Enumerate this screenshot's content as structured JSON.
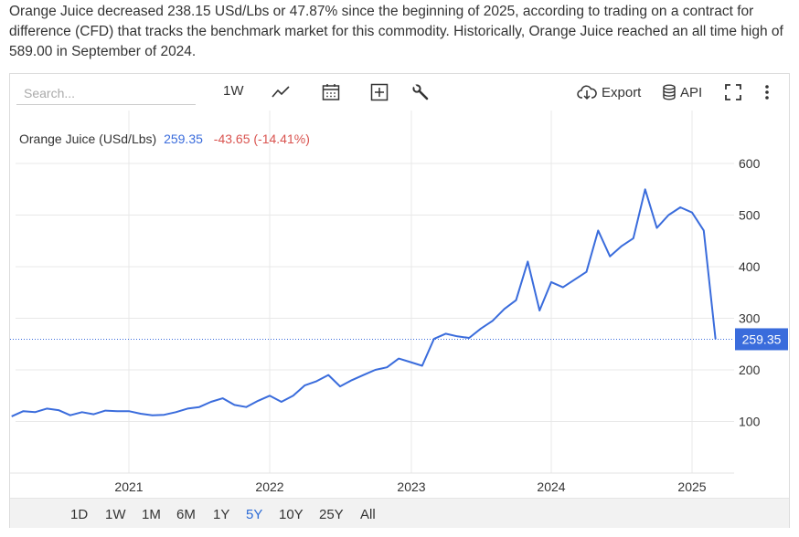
{
  "summary": "Orange Juice decreased 238.15 USd/Lbs or 47.87% since the beginning of 2025, according to trading on a contract for difference (CFD) that tracks the benchmark market for this commodity. Historically, Orange Juice reached an all time high of 589.00 in September of 2024.",
  "toolbar": {
    "search_placeholder": "Search...",
    "interval": "1W",
    "icons": [
      "line-chart-icon",
      "calendar-icon",
      "plus-box-icon",
      "wrench-icon"
    ],
    "export_label": "Export",
    "api_label": "API"
  },
  "legend": {
    "name": "Orange Juice (USd/Lbs)",
    "price": "259.35",
    "change": "-43.65 (-14.41%)"
  },
  "colors": {
    "line": "#3a6cdc",
    "price": "#3a6cdc",
    "negative": "#d9534f",
    "tag_bg": "#3a6cdc"
  },
  "ranges": [
    "1D",
    "1W",
    "1M",
    "6M",
    "1Y",
    "5Y",
    "10Y",
    "25Y",
    "All"
  ],
  "active_range": "5Y",
  "chart_data": {
    "type": "line",
    "title": "",
    "series": [
      {
        "name": "Orange Juice (USd/Lbs)",
        "x": [
          "2020-03",
          "2020-04",
          "2020-05",
          "2020-06",
          "2020-07",
          "2020-08",
          "2020-09",
          "2020-10",
          "2020-11",
          "2020-12",
          "2021-01",
          "2021-02",
          "2021-03",
          "2021-04",
          "2021-05",
          "2021-06",
          "2021-07",
          "2021-08",
          "2021-09",
          "2021-10",
          "2021-11",
          "2021-12",
          "2022-01",
          "2022-02",
          "2022-03",
          "2022-04",
          "2022-05",
          "2022-06",
          "2022-07",
          "2022-08",
          "2022-09",
          "2022-10",
          "2022-11",
          "2022-12",
          "2023-01",
          "2023-02",
          "2023-03",
          "2023-04",
          "2023-05",
          "2023-06",
          "2023-07",
          "2023-08",
          "2023-09",
          "2023-10",
          "2023-11",
          "2023-12",
          "2024-01",
          "2024-02",
          "2024-03",
          "2024-04",
          "2024-05",
          "2024-06",
          "2024-07",
          "2024-08",
          "2024-09",
          "2024-10",
          "2024-11",
          "2024-12",
          "2025-01",
          "2025-02",
          "2025-03"
        ],
        "values": [
          110,
          120,
          118,
          125,
          122,
          112,
          118,
          114,
          121,
          120,
          120,
          115,
          112,
          113,
          118,
          125,
          128,
          138,
          145,
          132,
          128,
          140,
          150,
          138,
          150,
          170,
          178,
          190,
          168,
          180,
          190,
          200,
          205,
          222,
          215,
          208,
          260,
          270,
          265,
          262,
          280,
          295,
          318,
          335,
          410,
          315,
          370,
          360,
          375,
          390,
          470,
          420,
          440,
          455,
          550,
          475,
          500,
          515,
          505,
          470,
          259.35
        ]
      }
    ],
    "ylim": [
      0,
      650
    ],
    "yticks": [
      100,
      200,
      300,
      400,
      500,
      600
    ],
    "xticks": [
      "2021",
      "2022",
      "2023",
      "2024",
      "2025"
    ],
    "xlabel": "",
    "ylabel": "",
    "last_value": "259.35",
    "grid": true,
    "legend_position": "top-left"
  }
}
